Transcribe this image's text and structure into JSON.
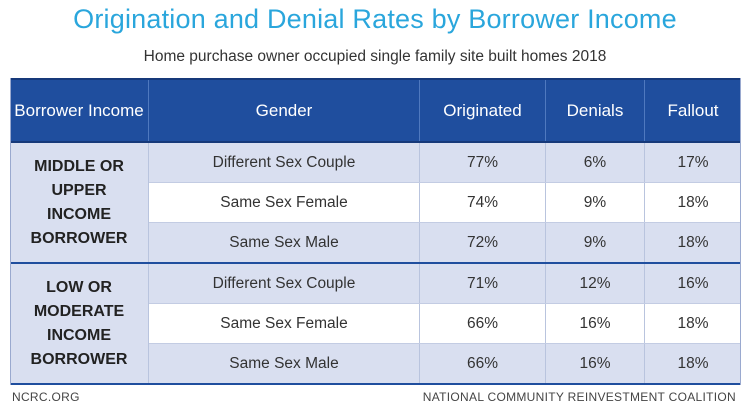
{
  "chart_data": {
    "type": "table",
    "title": "Origination and Denial Rates by Borrower Income",
    "subtitle": "Home purchase owner occupied single family site built homes 2018",
    "columns": [
      "Borrower Income",
      "Gender",
      "Originated",
      "Denials",
      "Fallout"
    ],
    "groups": [
      {
        "label_lines": [
          "MIDDLE OR UPPER",
          "INCOME BORROWER"
        ],
        "rows": [
          {
            "gender": "Different Sex Couple",
            "originated": "77%",
            "denials": "6%",
            "fallout": "17%"
          },
          {
            "gender": "Same Sex Female",
            "originated": "74%",
            "denials": "9%",
            "fallout": "18%"
          },
          {
            "gender": "Same Sex Male",
            "originated": "72%",
            "denials": "9%",
            "fallout": "18%"
          }
        ]
      },
      {
        "label_lines": [
          "LOW OR MODERATE",
          "INCOME BORROWER"
        ],
        "rows": [
          {
            "gender": "Different Sex Couple",
            "originated": "71%",
            "denials": "12%",
            "fallout": "16%"
          },
          {
            "gender": "Same Sex Female",
            "originated": "66%",
            "denials": "16%",
            "fallout": "18%"
          },
          {
            "gender": "Same Sex Male",
            "originated": "66%",
            "denials": "16%",
            "fallout": "18%"
          }
        ]
      }
    ]
  },
  "footer": {
    "left": "NCRC.ORG",
    "right": "NATIONAL COMMUNITY REINVESTMENT COALITION"
  },
  "colors": {
    "title": "#2aa6dc",
    "header_bg": "#1f4e9e",
    "row_shade": "#d9dff0"
  }
}
